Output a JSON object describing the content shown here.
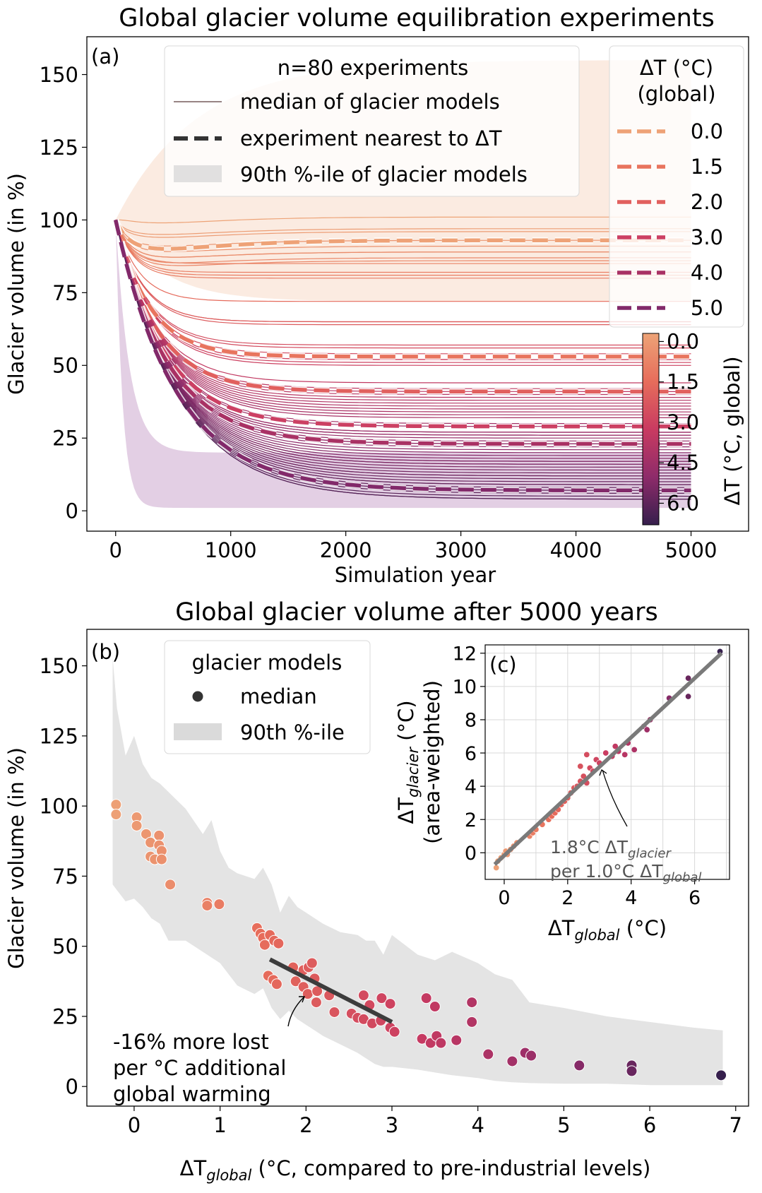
{
  "figure": {
    "panel_a_title": "Global glacier volume equilibration experiments",
    "panel_b_title": "Global glacier volume after 5000 years"
  },
  "chart_data": [
    {
      "panel": "(a)",
      "type": "line",
      "title": "Global glacier volume equilibration experiments",
      "xlabel": "Simulation year",
      "ylabel": "Glacier volume (in %)",
      "xlim": [
        -250,
        5500
      ],
      "ylim": [
        -7,
        163
      ],
      "xticks": [
        0,
        1000,
        2000,
        3000,
        4000,
        5000
      ],
      "yticks": [
        0,
        25,
        50,
        75,
        100,
        125,
        150
      ],
      "legend_left": {
        "title": "n=80 experiments",
        "entries": [
          "median of glacier models",
          "experiment nearest to ΔT",
          "90th %-ile of glacier models"
        ],
        "placement": "top-center"
      },
      "legend_right": {
        "title_line1": "ΔT (°C)",
        "title_line2": "(global)",
        "placement": "top-right",
        "entries": [
          {
            "label": "0.0",
            "color": "#eea277"
          },
          {
            "label": "1.5",
            "color": "#e8745e"
          },
          {
            "label": "2.0",
            "color": "#e1605e"
          },
          {
            "label": "3.0",
            "color": "#cc4063"
          },
          {
            "label": "4.0",
            "color": "#a93164"
          },
          {
            "label": "5.0",
            "color": "#82296a"
          }
        ]
      },
      "colorbar": {
        "label": "ΔT (°C, global)",
        "ticks": [
          "0.0",
          "1.5",
          "3.0",
          "4.5",
          "6.0"
        ],
        "range": [
          -0.3,
          6.8
        ],
        "colors": [
          "#eda377",
          "#e76d5b",
          "#c93b61",
          "#8e2b6a",
          "#361f4d"
        ]
      },
      "uncertainty_bands": [
        {
          "color": "#f3c6a8",
          "start": 100,
          "upper": 155,
          "lower": 72
        },
        {
          "color": "#b681b8",
          "start": 100,
          "upper": 20,
          "lower": 1
        }
      ],
      "highlighted_series": [
        {
          "name": "0.0",
          "color": "#eea277",
          "final": 93
        },
        {
          "name": "1.5",
          "color": "#e8745e",
          "final": 53
        },
        {
          "name": "2.0",
          "color": "#e1605e",
          "final": 41
        },
        {
          "name": "3.0",
          "color": "#cc4063",
          "final": 29
        },
        {
          "name": "4.0",
          "color": "#a93164",
          "final": 23
        },
        {
          "name": "5.0",
          "color": "#82296a",
          "final": 7
        }
      ],
      "median_series_final_volumes": [
        101,
        97,
        96,
        93,
        91,
        89,
        89,
        87,
        86,
        85,
        82,
        81,
        80,
        72,
        65,
        65,
        64,
        57,
        56,
        54,
        52,
        52,
        51,
        50,
        44,
        42,
        41,
        40,
        39,
        38,
        37,
        36,
        35,
        34,
        33,
        32,
        30,
        29,
        27,
        27,
        26,
        26,
        25,
        24,
        23,
        23,
        22,
        21,
        20,
        19,
        18,
        17,
        17,
        16,
        16,
        15,
        14,
        13,
        12,
        12,
        11,
        10,
        9,
        9,
        8,
        7,
        6,
        5,
        4,
        4
      ]
    },
    {
      "panel": "(b)",
      "type": "scatter",
      "title": "Global glacier volume after 5000 years",
      "xlabel_main": "ΔT",
      "xlabel_sub": "global",
      "xlabel_rest": " (°C, compared to pre-industrial levels)",
      "ylabel": "Glacier volume (in %)",
      "xlim": [
        -0.55,
        7.15
      ],
      "ylim": [
        -7,
        163
      ],
      "xticks": [
        0,
        1,
        2,
        3,
        4,
        5,
        6,
        7
      ],
      "yticks": [
        0,
        25,
        50,
        75,
        100,
        125,
        150
      ],
      "legend": {
        "title": "glacier models",
        "entries": [
          "median",
          "90th %-ile"
        ],
        "placement": "top-left"
      },
      "band": {
        "x": [
          -0.25,
          -0.2,
          -0.1,
          0.0,
          0.1,
          0.2,
          0.3,
          0.4,
          0.6,
          0.8,
          0.9,
          1.0,
          1.1,
          1.2,
          1.4,
          1.5,
          1.6,
          1.7,
          1.8,
          1.9,
          2.0,
          2.1,
          2.2,
          2.4,
          2.6,
          2.7,
          2.8,
          2.9,
          3.0,
          3.3,
          3.5,
          3.7,
          4.0,
          4.2,
          4.4,
          4.6,
          5.0,
          5.5,
          6.0,
          6.5,
          6.85
        ],
        "upper": [
          153,
          135,
          118,
          125,
          115,
          110,
          108,
          105,
          99,
          90,
          95,
          84,
          78,
          76,
          74,
          78,
          72,
          62,
          68,
          64,
          62,
          60,
          58,
          55,
          54,
          52,
          52,
          47,
          54,
          47,
          45,
          48,
          44,
          40,
          38,
          30,
          28,
          25,
          23,
          21,
          20
        ],
        "lower": [
          72,
          70,
          66,
          67,
          64,
          60,
          58,
          52,
          52,
          48,
          46,
          44,
          40,
          36,
          33,
          35,
          28,
          24,
          27,
          24,
          22,
          20,
          18,
          15,
          12,
          10,
          8,
          7,
          7,
          6,
          5,
          4,
          3,
          2,
          1.5,
          1.2,
          1,
          1,
          0.5,
          0.5,
          0.5
        ]
      },
      "points": [
        {
          "x": -0.21,
          "y": 100.5
        },
        {
          "x": -0.21,
          "y": 97
        },
        {
          "x": 0.03,
          "y": 96
        },
        {
          "x": 0.03,
          "y": 93
        },
        {
          "x": 0.14,
          "y": 90
        },
        {
          "x": 0.19,
          "y": 87
        },
        {
          "x": 0.19,
          "y": 82
        },
        {
          "x": 0.24,
          "y": 81
        },
        {
          "x": 0.29,
          "y": 89.5
        },
        {
          "x": 0.29,
          "y": 86
        },
        {
          "x": 0.32,
          "y": 84
        },
        {
          "x": 0.32,
          "y": 81
        },
        {
          "x": 0.42,
          "y": 72
        },
        {
          "x": 0.85,
          "y": 65.5
        },
        {
          "x": 0.85,
          "y": 64.5
        },
        {
          "x": 0.99,
          "y": 65
        },
        {
          "x": 1.43,
          "y": 56.5
        },
        {
          "x": 1.47,
          "y": 54.5
        },
        {
          "x": 1.5,
          "y": 53
        },
        {
          "x": 1.52,
          "y": 50.5
        },
        {
          "x": 1.58,
          "y": 54
        },
        {
          "x": 1.63,
          "y": 52
        },
        {
          "x": 1.68,
          "y": 51
        },
        {
          "x": 1.56,
          "y": 39.5
        },
        {
          "x": 1.62,
          "y": 38
        },
        {
          "x": 1.66,
          "y": 36.5
        },
        {
          "x": 1.85,
          "y": 42.5
        },
        {
          "x": 1.88,
          "y": 37.5
        },
        {
          "x": 1.97,
          "y": 41.5
        },
        {
          "x": 2.03,
          "y": 42.5
        },
        {
          "x": 2.07,
          "y": 44
        },
        {
          "x": 2.1,
          "y": 38.5
        },
        {
          "x": 1.97,
          "y": 35.5
        },
        {
          "x": 2.02,
          "y": 33
        },
        {
          "x": 2.13,
          "y": 34
        },
        {
          "x": 2.12,
          "y": 30
        },
        {
          "x": 2.27,
          "y": 32.5
        },
        {
          "x": 2.33,
          "y": 26.5
        },
        {
          "x": 2.53,
          "y": 26
        },
        {
          "x": 2.6,
          "y": 24.5
        },
        {
          "x": 2.67,
          "y": 24
        },
        {
          "x": 2.67,
          "y": 32.5
        },
        {
          "x": 2.74,
          "y": 29
        },
        {
          "x": 2.77,
          "y": 22.5
        },
        {
          "x": 2.87,
          "y": 23.5
        },
        {
          "x": 2.88,
          "y": 31.5
        },
        {
          "x": 2.98,
          "y": 29.5
        },
        {
          "x": 2.98,
          "y": 21
        },
        {
          "x": 3.03,
          "y": 19.5
        },
        {
          "x": 3.35,
          "y": 17
        },
        {
          "x": 3.4,
          "y": 31.5
        },
        {
          "x": 3.45,
          "y": 15.5
        },
        {
          "x": 3.5,
          "y": 28.5
        },
        {
          "x": 3.52,
          "y": 18
        },
        {
          "x": 3.57,
          "y": 15.5
        },
        {
          "x": 3.75,
          "y": 16.5
        },
        {
          "x": 3.93,
          "y": 30
        },
        {
          "x": 3.93,
          "y": 23
        },
        {
          "x": 4.12,
          "y": 11.5
        },
        {
          "x": 4.4,
          "y": 9
        },
        {
          "x": 4.55,
          "y": 12
        },
        {
          "x": 4.62,
          "y": 11
        },
        {
          "x": 5.18,
          "y": 7.5
        },
        {
          "x": 5.79,
          "y": 7.5
        },
        {
          "x": 5.79,
          "y": 5.5
        },
        {
          "x": 6.83,
          "y": 4
        }
      ],
      "regression": {
        "x": [
          1.58,
          3.0
        ],
        "y": [
          45.3,
          23
        ]
      },
      "annotation": {
        "line1": "-16% more lost",
        "line2": "per °C additional",
        "line3": "global warming"
      }
    },
    {
      "panel": "(c)",
      "type": "scatter",
      "ylabel_main": "ΔT",
      "ylabel_sub": "glacier",
      "ylabel_rest": " (°C)",
      "ylabel2": "(area-weighted)",
      "xlabel_main": "ΔT",
      "xlabel_sub": "global",
      "xlabel_rest": " (°C)",
      "xlim": [
        -0.6,
        7.1
      ],
      "ylim": [
        -1.6,
        12.5
      ],
      "xticks": [
        0,
        2,
        4,
        6
      ],
      "yticks": [
        0,
        2,
        4,
        6,
        8,
        10,
        12
      ],
      "grid": true,
      "fit": {
        "x": [
          -0.3,
          6.85
        ],
        "y": [
          -0.7,
          12.0
        ]
      },
      "annotation": {
        "l1_a": "1.8°C ΔT",
        "l1_sub": "glacier",
        "l2_a": "per 1.0°C ΔT",
        "l2_sub": "global"
      },
      "points": [
        {
          "x": -0.25,
          "y": -0.9
        },
        {
          "x": -0.2,
          "y": -0.5
        },
        {
          "x": -0.1,
          "y": -0.3
        },
        {
          "x": 0.0,
          "y": -0.1
        },
        {
          "x": 0.05,
          "y": 0.1
        },
        {
          "x": 0.1,
          "y": -0.1
        },
        {
          "x": 0.2,
          "y": 0.2
        },
        {
          "x": 0.3,
          "y": 0.4
        },
        {
          "x": 0.4,
          "y": 0.6
        },
        {
          "x": 0.8,
          "y": 1.0
        },
        {
          "x": 0.9,
          "y": 1.2
        },
        {
          "x": 1.0,
          "y": 1.4
        },
        {
          "x": 1.2,
          "y": 1.7
        },
        {
          "x": 1.4,
          "y": 2.0
        },
        {
          "x": 1.5,
          "y": 2.2
        },
        {
          "x": 1.6,
          "y": 2.4
        },
        {
          "x": 1.7,
          "y": 2.6
        },
        {
          "x": 1.8,
          "y": 2.9
        },
        {
          "x": 1.9,
          "y": 3.1
        },
        {
          "x": 2.0,
          "y": 3.3
        },
        {
          "x": 2.1,
          "y": 3.6
        },
        {
          "x": 2.2,
          "y": 3.9
        },
        {
          "x": 2.3,
          "y": 4.0
        },
        {
          "x": 2.4,
          "y": 4.3
        },
        {
          "x": 2.5,
          "y": 4.6
        },
        {
          "x": 2.6,
          "y": 4.2
        },
        {
          "x": 2.7,
          "y": 5.1
        },
        {
          "x": 2.8,
          "y": 4.9
        },
        {
          "x": 2.9,
          "y": 5.6
        },
        {
          "x": 3.0,
          "y": 5.4
        },
        {
          "x": 2.4,
          "y": 5.2
        },
        {
          "x": 2.6,
          "y": 5.9
        },
        {
          "x": 3.2,
          "y": 6.0
        },
        {
          "x": 3.4,
          "y": 5.8
        },
        {
          "x": 3.5,
          "y": 6.4
        },
        {
          "x": 3.6,
          "y": 6.1
        },
        {
          "x": 3.8,
          "y": 5.9
        },
        {
          "x": 3.9,
          "y": 6.6
        },
        {
          "x": 4.1,
          "y": 6.2
        },
        {
          "x": 4.4,
          "y": 7.6
        },
        {
          "x": 4.5,
          "y": 7.4
        },
        {
          "x": 4.6,
          "y": 8.0
        },
        {
          "x": 5.2,
          "y": 9.3
        },
        {
          "x": 5.8,
          "y": 10.5
        },
        {
          "x": 5.8,
          "y": 9.4
        },
        {
          "x": 6.8,
          "y": 12.1
        }
      ]
    }
  ]
}
